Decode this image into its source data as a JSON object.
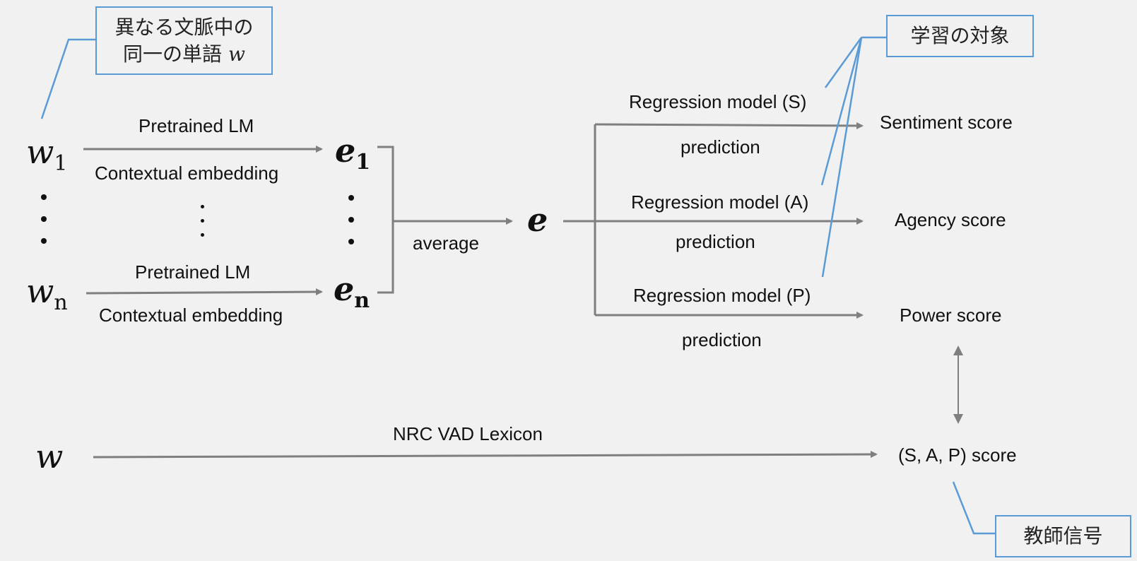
{
  "callouts": {
    "same_word_line1": "異なる文脈中の",
    "same_word_line2": "同一の単語",
    "same_word_var": "w",
    "learning_target": "学習の対象",
    "teacher_signal": "教師信号"
  },
  "inputs": {
    "w": "w",
    "sub1": "1",
    "subn": "n"
  },
  "encoder": {
    "top_label": "Pretrained LM",
    "top_sublabel": "Contextual embedding",
    "bottom_label": "Pretrained LM",
    "bottom_sublabel": "Contextual embedding"
  },
  "embeddings": {
    "e": "e",
    "sub1": "1",
    "subn": "n"
  },
  "pooling": {
    "label": "average",
    "output": "e"
  },
  "regressors": [
    {
      "model": "Regression model (S)",
      "pred": "prediction",
      "score": "Sentiment score"
    },
    {
      "model": "Regression model (A)",
      "pred": "prediction",
      "score": "Agency score"
    },
    {
      "model": "Regression model (P)",
      "pred": "prediction",
      "score": "Power score"
    }
  ],
  "lexicon": {
    "input": "w",
    "label": "NRC VAD Lexicon",
    "target": "(S, A, P) score"
  },
  "colors": {
    "arrow": "#7f7f7f",
    "callout": "#5b9bd5",
    "background": "#f1f1f1"
  }
}
